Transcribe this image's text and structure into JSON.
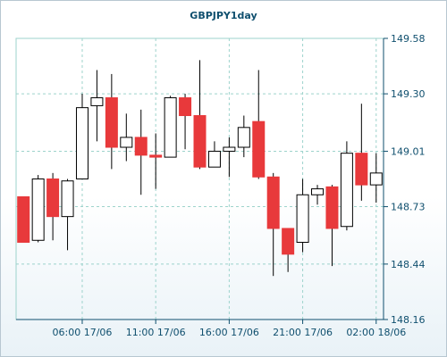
{
  "chart_data": {
    "type": "candlestick",
    "title": "GBPJPY1day",
    "xlabel": "",
    "ylabel": "",
    "ylim": [
      148.16,
      149.58
    ],
    "y_ticks": [
      "149.58",
      "149.30",
      "149.01",
      "148.73",
      "148.44",
      "148.16"
    ],
    "x_ticks": [
      "06:00 17/06",
      "11:00 17/06",
      "16:00 17/06",
      "21:00 17/06",
      "02:00 18/06"
    ],
    "grid": true,
    "colors": {
      "up": "#ffffff",
      "down": "#e8393b",
      "wick": "#000000",
      "grid": "#9dd3cc",
      "axis": "#0f4f6e"
    },
    "candles": [
      {
        "o": 148.78,
        "h": 148.78,
        "l": 148.55,
        "c": 148.55
      },
      {
        "o": 148.56,
        "h": 148.89,
        "l": 148.55,
        "c": 148.87
      },
      {
        "o": 148.87,
        "h": 148.9,
        "l": 148.56,
        "c": 148.68
      },
      {
        "o": 148.68,
        "h": 148.87,
        "l": 148.51,
        "c": 148.86
      },
      {
        "o": 148.87,
        "h": 149.3,
        "l": 148.87,
        "c": 149.23
      },
      {
        "o": 149.24,
        "h": 149.42,
        "l": 149.06,
        "c": 149.28
      },
      {
        "o": 149.28,
        "h": 149.4,
        "l": 148.92,
        "c": 149.03
      },
      {
        "o": 149.03,
        "h": 149.2,
        "l": 148.96,
        "c": 149.08
      },
      {
        "o": 149.08,
        "h": 149.22,
        "l": 148.79,
        "c": 148.99
      },
      {
        "o": 148.99,
        "h": 149.1,
        "l": 148.82,
        "c": 148.98
      },
      {
        "o": 148.98,
        "h": 149.29,
        "l": 148.98,
        "c": 149.28
      },
      {
        "o": 149.28,
        "h": 149.3,
        "l": 149.02,
        "c": 149.19
      },
      {
        "o": 149.19,
        "h": 149.47,
        "l": 148.92,
        "c": 148.93
      },
      {
        "o": 148.93,
        "h": 149.06,
        "l": 148.93,
        "c": 149.01
      },
      {
        "o": 149.01,
        "h": 149.08,
        "l": 148.88,
        "c": 149.03
      },
      {
        "o": 149.03,
        "h": 149.19,
        "l": 148.98,
        "c": 149.13
      },
      {
        "o": 149.16,
        "h": 149.42,
        "l": 148.87,
        "c": 148.88
      },
      {
        "o": 148.88,
        "h": 148.9,
        "l": 148.38,
        "c": 148.62
      },
      {
        "o": 148.62,
        "h": 148.62,
        "l": 148.4,
        "c": 148.49
      },
      {
        "o": 148.55,
        "h": 148.87,
        "l": 148.5,
        "c": 148.79
      },
      {
        "o": 148.79,
        "h": 148.84,
        "l": 148.74,
        "c": 148.82
      },
      {
        "o": 148.83,
        "h": 148.84,
        "l": 148.43,
        "c": 148.62
      },
      {
        "o": 148.63,
        "h": 149.06,
        "l": 148.61,
        "c": 149.0
      },
      {
        "o": 149.0,
        "h": 149.25,
        "l": 148.76,
        "c": 148.84
      },
      {
        "o": 148.84,
        "h": 149.0,
        "l": 148.75,
        "c": 148.9
      }
    ]
  }
}
